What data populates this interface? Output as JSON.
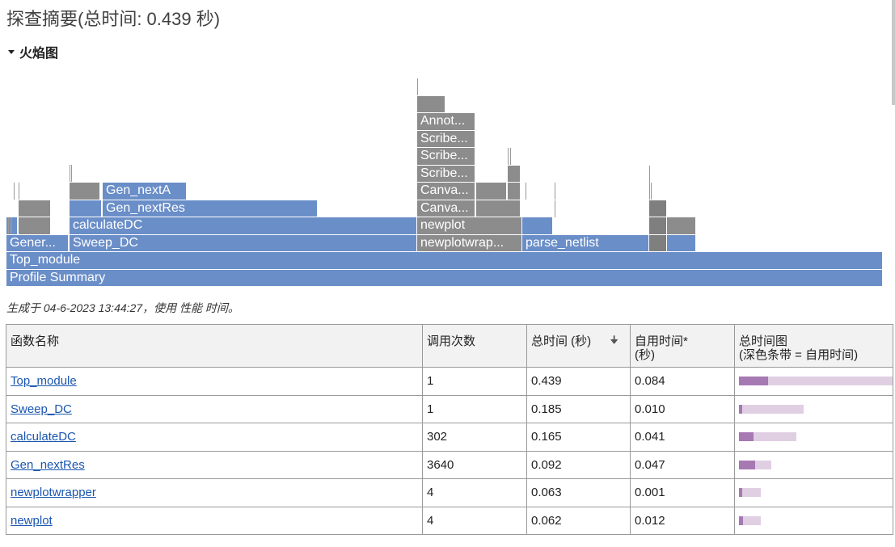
{
  "page_title": "探查摘要(总时间: 0.439 秒)",
  "flame_section_label": "火焰图",
  "flame_labels": {
    "profile_summary": "Profile Summary",
    "top_module": "Top_module",
    "gener": "Gener...",
    "sweep_dc": "Sweep_DC",
    "calculate_dc": "calculateDC",
    "gen_next_res": "Gen_nextRes",
    "gen_next_a": "Gen_nextA",
    "newplotwrapper": "newplotwrap...",
    "parse_netlist": "parse_netlist",
    "newplot": "newplot",
    "canva1": "Canva...",
    "canva2": "Canva...",
    "scribe1": "Scribe...",
    "scribe2": "Scribe...",
    "scribe3": "Scribe...",
    "annot": "Annot..."
  },
  "generated_text": "生成于 04-6-2023 13:44:27，使用 性能 时间。",
  "table": {
    "headers": {
      "name": "函数名称",
      "calls": "调用次数",
      "total_time": "总时间 (秒)",
      "self_time_l1": "自用时间*",
      "self_time_l2": "(秒)",
      "plot_l1": "总时间图",
      "plot_l2": "(深色条带 = 自用时间)"
    },
    "sort_icon": "down-arrow-icon",
    "rows": [
      {
        "name": "Top_module",
        "calls": "1",
        "total": "0.439",
        "self": "0.084"
      },
      {
        "name": "Sweep_DC",
        "calls": "1",
        "total": "0.185",
        "self": "0.010"
      },
      {
        "name": "calculateDC",
        "calls": "302",
        "total": "0.165",
        "self": "0.041"
      },
      {
        "name": "Gen_nextRes",
        "calls": "3640",
        "total": "0.092",
        "self": "0.047"
      },
      {
        "name": "newplotwrapper",
        "calls": "4",
        "total": "0.063",
        "self": "0.001"
      },
      {
        "name": "newplot",
        "calls": "4",
        "total": "0.062",
        "self": "0.012"
      }
    ]
  },
  "colors": {
    "flame_blue": "#6a8ec8",
    "flame_gray": "#8c8c8c",
    "bar_total": "#e0cfe3",
    "bar_self": "#a679b3",
    "link": "#1a56b0"
  }
}
